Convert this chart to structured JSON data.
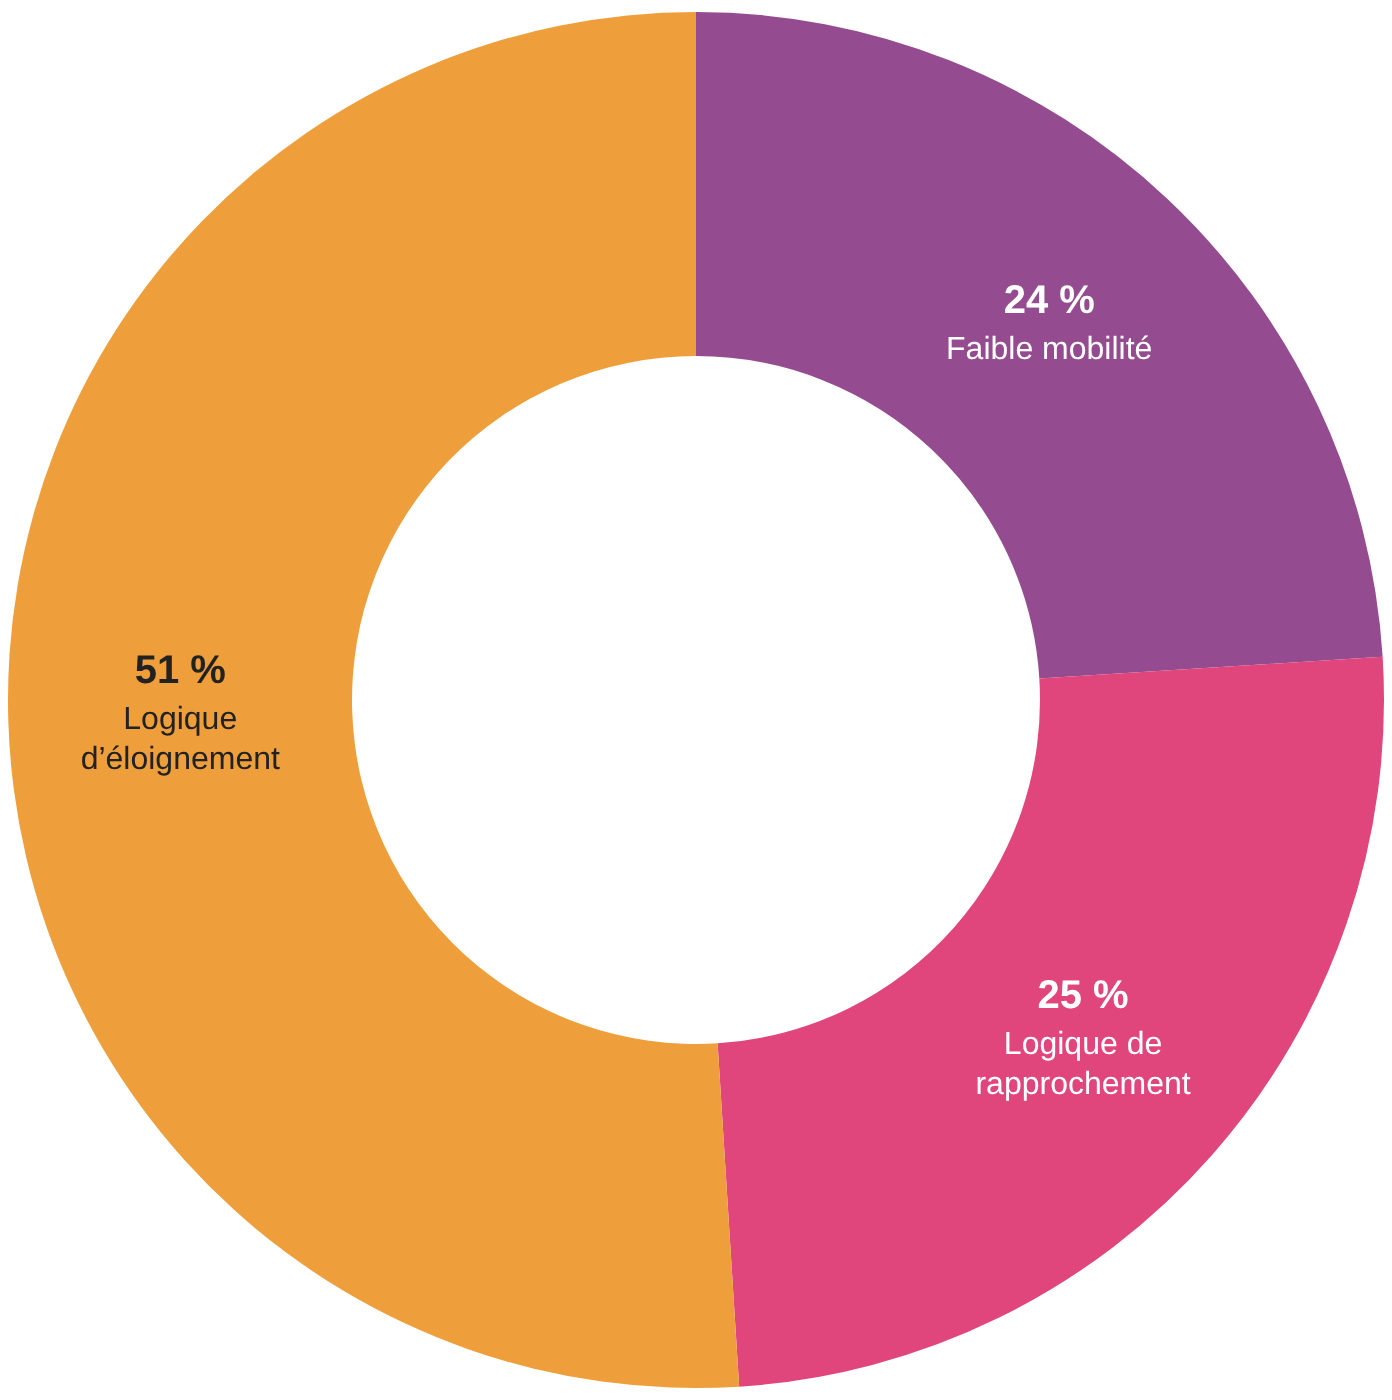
{
  "chart_data": {
    "type": "donut",
    "categories": [
      "Faible mobilité",
      "Logique de rapprochement",
      "Logique d’éloignement"
    ],
    "values": [
      24,
      25,
      51
    ],
    "colors": [
      "#944b8f",
      "#e0457b",
      "#ee9f3b"
    ],
    "value_labels": [
      "24 %",
      "25 %",
      "51 %"
    ],
    "legend": false
  }
}
